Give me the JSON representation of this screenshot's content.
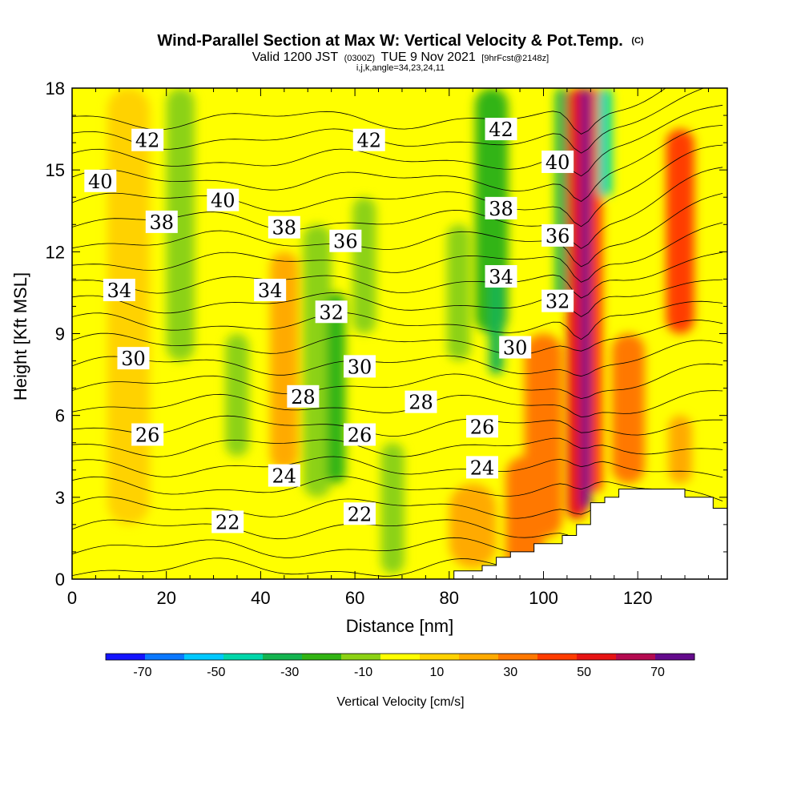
{
  "header": {
    "title_main": "Wind-Parallel Section at Max W: Vertical Velocity & Pot.Temp.",
    "title_mark": "(C)",
    "valid_a": "Valid 1200 JST",
    "valid_b": "(0300Z)",
    "valid_c": "TUE 9 Nov 2021",
    "valid_d": "[9hrFcst@2148z]",
    "indices": "i,j,k,angle=34,23,24,11"
  },
  "chart_data": {
    "type": "heatmap",
    "title": "Wind-Parallel Section at Max W: Vertical Velocity & Pot.Temp.",
    "xlabel": "Distance [nm]",
    "ylabel": "Height [Kft MSL]",
    "xlim": [
      0,
      139
    ],
    "ylim": [
      0,
      18
    ],
    "xticks": [
      0,
      20,
      40,
      60,
      80,
      100,
      120
    ],
    "yticks": [
      0,
      3,
      6,
      9,
      12,
      15,
      18
    ],
    "colorbar": {
      "label": "Vertical Velocity [cm/s]",
      "tick_values": [
        -70,
        -50,
        -30,
        -10,
        10,
        30,
        50,
        70
      ],
      "tick_labels": [
        "-70",
        "-50",
        "-30",
        "-10",
        "10",
        "30",
        "50",
        "70"
      ],
      "bounds": [
        -80,
        80
      ],
      "colors": [
        "#1414ff",
        "#0a78ff",
        "#00c8ff",
        "#00d7aa",
        "#14b450",
        "#32b414",
        "#8cd214",
        "#ffff00",
        "#ffd200",
        "#ffaa00",
        "#ff7800",
        "#ff3c00",
        "#e61414",
        "#b40a50",
        "#640a8c"
      ]
    },
    "velocity_bands": [
      {
        "x": 2,
        "top": 4.5,
        "bottom": 0,
        "w": 0,
        "width": 5
      },
      {
        "x": 12,
        "top": 18,
        "bottom": 2,
        "w": 10,
        "width": 9
      },
      {
        "x": 23,
        "top": 18,
        "bottom": 8,
        "w": -15,
        "width": 6
      },
      {
        "x": 35,
        "top": 9,
        "bottom": 4.5,
        "w": -15,
        "width": 5
      },
      {
        "x": 45,
        "top": 12,
        "bottom": 4,
        "w": 20,
        "width": 6
      },
      {
        "x": 52,
        "top": 13,
        "bottom": 3,
        "w": -10,
        "width": 6
      },
      {
        "x": 56,
        "top": 10.5,
        "bottom": 3.5,
        "w": -20,
        "width": 4
      },
      {
        "x": 62,
        "top": 14,
        "bottom": 9,
        "w": -12,
        "width": 5
      },
      {
        "x": 68,
        "top": 5,
        "bottom": 0.2,
        "w": -10,
        "width": 5
      },
      {
        "x": 85,
        "top": 3.5,
        "bottom": 0.4,
        "w": 22,
        "width": 10
      },
      {
        "x": 82,
        "top": 13,
        "bottom": 8,
        "w": -15,
        "width": 5
      },
      {
        "x": 89,
        "top": 18,
        "bottom": 9,
        "w": -18,
        "width": 7
      },
      {
        "x": 90,
        "top": 11,
        "bottom": 7.5,
        "w": -30,
        "width": 3
      },
      {
        "x": 96,
        "top": 4.5,
        "bottom": 0,
        "w": 35,
        "width": 8
      },
      {
        "x": 100,
        "top": 9,
        "bottom": 1.5,
        "w": 30,
        "width": 8
      },
      {
        "x": 104,
        "top": 18,
        "bottom": 10,
        "w": -35,
        "width": 3
      },
      {
        "x": 107,
        "top": 18,
        "bottom": 2.2,
        "w": 50,
        "width": 4
      },
      {
        "x": 109,
        "top": 18,
        "bottom": 2.6,
        "w": 70,
        "width": 2
      },
      {
        "x": 111,
        "top": 18,
        "bottom": 3.2,
        "w": 45,
        "width": 3
      },
      {
        "x": 113,
        "top": 18,
        "bottom": 14,
        "w": -45,
        "width": 3
      },
      {
        "x": 118,
        "top": 9,
        "bottom": 3.5,
        "w": 30,
        "width": 7
      },
      {
        "x": 129,
        "top": 16.5,
        "bottom": 9,
        "w": 45,
        "width": 6
      },
      {
        "x": 129,
        "top": 6,
        "bottom": 3.5,
        "w": 25,
        "width": 5
      }
    ],
    "isentrope_levels": [
      20,
      21,
      22,
      23,
      24,
      25,
      26,
      27,
      28,
      29,
      30,
      31,
      32,
      33,
      34,
      35,
      36,
      37,
      38,
      39,
      40,
      41,
      42,
      43,
      44
    ],
    "contour_labels": [
      {
        "text": "42",
        "x": 16,
        "y": 16.1
      },
      {
        "text": "40",
        "x": 6,
        "y": 14.6
      },
      {
        "text": "40",
        "x": 32,
        "y": 13.9
      },
      {
        "text": "38",
        "x": 19,
        "y": 13.1
      },
      {
        "text": "38",
        "x": 45,
        "y": 12.9
      },
      {
        "text": "36",
        "x": 58,
        "y": 12.4
      },
      {
        "text": "34",
        "x": 10,
        "y": 10.6
      },
      {
        "text": "34",
        "x": 42,
        "y": 10.6
      },
      {
        "text": "32",
        "x": 55,
        "y": 9.8
      },
      {
        "text": "30",
        "x": 13,
        "y": 8.1
      },
      {
        "text": "30",
        "x": 61,
        "y": 7.8
      },
      {
        "text": "28",
        "x": 49,
        "y": 6.7
      },
      {
        "text": "28",
        "x": 74,
        "y": 6.5
      },
      {
        "text": "26",
        "x": 16,
        "y": 5.3
      },
      {
        "text": "26",
        "x": 61,
        "y": 5.3
      },
      {
        "text": "24",
        "x": 45,
        "y": 3.8
      },
      {
        "text": "22",
        "x": 33,
        "y": 2.1
      },
      {
        "text": "22",
        "x": 61,
        "y": 2.4
      },
      {
        "text": "42",
        "x": 63,
        "y": 16.1
      },
      {
        "text": "42",
        "x": 91,
        "y": 16.5
      },
      {
        "text": "40",
        "x": 103,
        "y": 15.3
      },
      {
        "text": "38",
        "x": 91,
        "y": 13.6
      },
      {
        "text": "36",
        "x": 103,
        "y": 12.6
      },
      {
        "text": "34",
        "x": 91,
        "y": 11.1
      },
      {
        "text": "32",
        "x": 103,
        "y": 10.2
      },
      {
        "text": "30",
        "x": 94,
        "y": 8.5
      },
      {
        "text": "26",
        "x": 87,
        "y": 5.6
      },
      {
        "text": "24",
        "x": 87,
        "y": 4.1
      }
    ],
    "terrain_steps": [
      [
        0,
        0
      ],
      [
        81,
        0
      ],
      [
        81,
        0.3
      ],
      [
        87,
        0.3
      ],
      [
        87,
        0.5
      ],
      [
        90,
        0.5
      ],
      [
        90,
        0.8
      ],
      [
        93,
        0.8
      ],
      [
        93,
        1.0
      ],
      [
        98,
        1.0
      ],
      [
        98,
        1.3
      ],
      [
        104,
        1.3
      ],
      [
        104,
        1.6
      ],
      [
        107,
        1.6
      ],
      [
        107,
        2.0
      ],
      [
        110,
        2.0
      ],
      [
        110,
        2.8
      ],
      [
        113,
        2.8
      ],
      [
        113,
        3.0
      ],
      [
        116,
        3.0
      ],
      [
        116,
        3.3
      ],
      [
        130,
        3.3
      ],
      [
        130,
        3.0
      ],
      [
        136,
        3.0
      ],
      [
        136,
        2.6
      ],
      [
        139,
        2.6
      ],
      [
        139,
        0
      ]
    ]
  }
}
